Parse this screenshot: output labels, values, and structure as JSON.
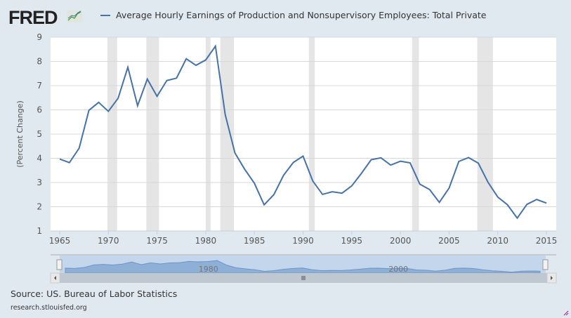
{
  "logo": "FRED",
  "source": "Source: US. Bureau of Labor Statistics",
  "url": "research.stlouisfed.org",
  "colors": {
    "line": "#4572a7",
    "recession": "#e5e5e5",
    "grid": "#d8d8d8"
  },
  "chart_data": {
    "type": "line",
    "title": "",
    "legend": [
      "Average Hourly Earnings of Production and Nonsupervisory Employees: Total Private"
    ],
    "legend_placement": "top",
    "ylabel": "(Percent Change)",
    "xlabel": "",
    "ylim": [
      1,
      9
    ],
    "xlim": [
      1964,
      2016
    ],
    "yticks": [
      "1",
      "2",
      "3",
      "4",
      "5",
      "6",
      "7",
      "8",
      "9"
    ],
    "xticks": [
      "1965",
      "1970",
      "1975",
      "1980",
      "1985",
      "1990",
      "1995",
      "2000",
      "2005",
      "2010",
      "2015"
    ],
    "navigator_labels": [
      "1980",
      "2000"
    ],
    "recessions": [
      [
        1969.9,
        1970.9
      ],
      [
        1973.9,
        1975.2
      ],
      [
        1980.0,
        1980.5
      ],
      [
        1981.5,
        1982.9
      ],
      [
        1990.6,
        1991.2
      ],
      [
        2001.2,
        2001.9
      ],
      [
        2007.9,
        2009.5
      ]
    ],
    "x": [
      1965,
      1966,
      1967,
      1968,
      1969,
      1970,
      1971,
      1972,
      1973,
      1974,
      1975,
      1976,
      1977,
      1978,
      1979,
      1980,
      1981,
      1982,
      1983,
      1984,
      1985,
      1986,
      1987,
      1988,
      1989,
      1990,
      1991,
      1992,
      1993,
      1994,
      1995,
      1996,
      1997,
      1998,
      1999,
      2000,
      2001,
      2002,
      2003,
      2004,
      2005,
      2006,
      2007,
      2008,
      2009,
      2010,
      2011,
      2012,
      2013,
      2014,
      2015
    ],
    "values": [
      3.97,
      3.82,
      4.42,
      5.98,
      6.31,
      5.94,
      6.48,
      7.76,
      6.17,
      7.27,
      6.56,
      7.21,
      7.31,
      8.11,
      7.84,
      8.06,
      8.63,
      5.81,
      4.22,
      3.55,
      2.97,
      2.08,
      2.5,
      3.3,
      3.83,
      4.09,
      3.06,
      2.51,
      2.62,
      2.56,
      2.86,
      3.38,
      3.94,
      4.02,
      3.72,
      3.88,
      3.81,
      2.93,
      2.71,
      2.18,
      2.77,
      3.87,
      4.03,
      3.8,
      3.01,
      2.4,
      2.08,
      1.53,
      2.1,
      2.3,
      2.15
    ]
  }
}
